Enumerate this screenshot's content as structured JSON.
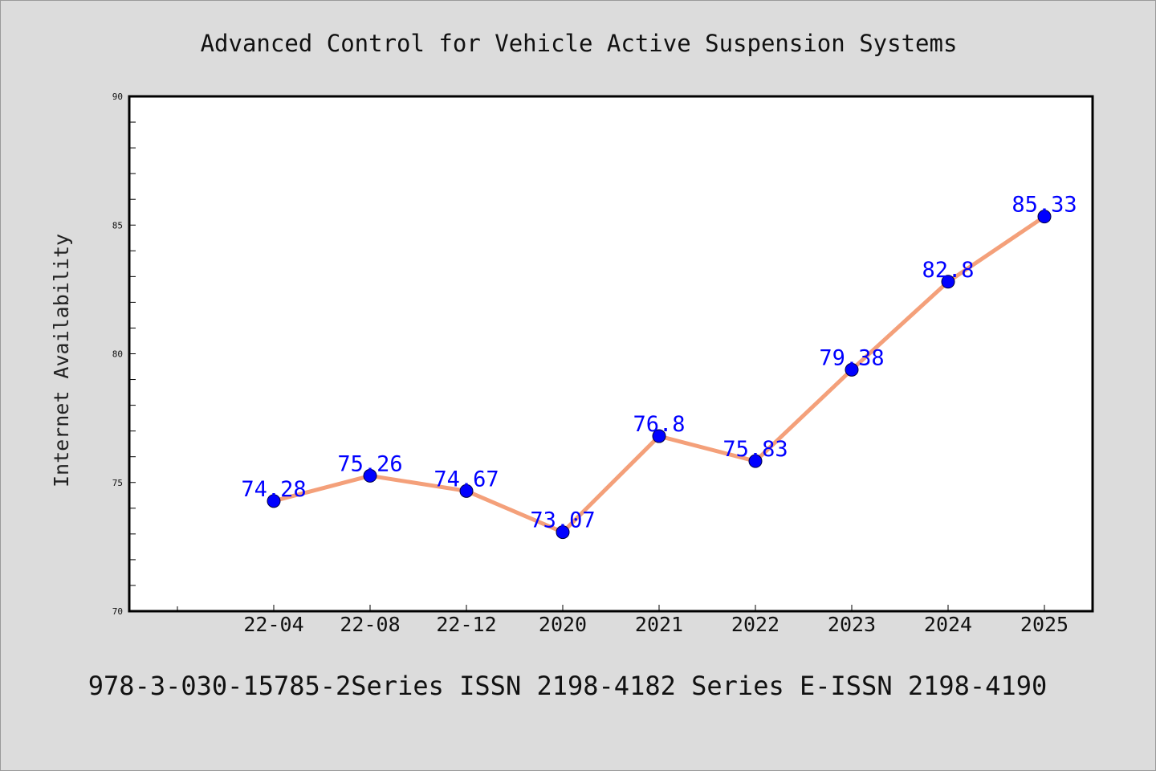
{
  "chart_data": {
    "type": "line",
    "title": "Advanced Control for Vehicle Active Suspension Systems",
    "xlabel": "",
    "ylabel": "Internet Availability",
    "categories": [
      "22-04",
      "22-08",
      "22-12",
      "2020",
      "2021",
      "2022",
      "2023",
      "2024",
      "2025"
    ],
    "series": [
      {
        "values": [
          74.28,
          75.26,
          74.67,
          73.07,
          76.8,
          75.83,
          79.38,
          82.8,
          85.33
        ],
        "labels": [
          "74.28",
          "75.26",
          "74.67",
          "73.07",
          "76.8",
          "75.83",
          "79.38",
          "82.8",
          "85.33"
        ]
      }
    ],
    "ylim": [
      70,
      90
    ],
    "yticks": [
      "70",
      "75",
      "80",
      "85",
      "90"
    ],
    "grid": false,
    "legend": "none",
    "line_color": "#f4a07a",
    "marker_color": "#0000ff",
    "label_color": "#0000ff",
    "footer": "978-3-030-15785-2Series ISSN 2198-4182 Series E-ISSN 2198-4190"
  }
}
